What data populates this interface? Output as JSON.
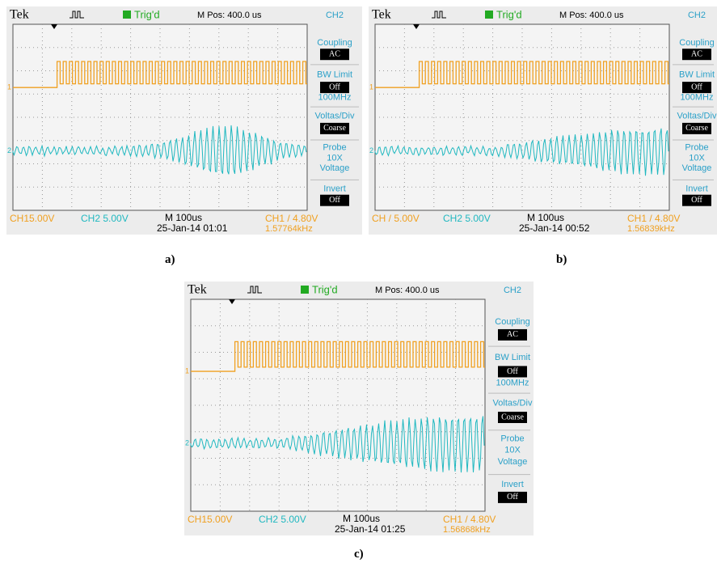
{
  "panels": [
    {
      "brand": "Tek",
      "trigger": "Trig'd",
      "m_pos": "M Pos: 400.0 us",
      "menu": {
        "channel": "CH2",
        "coupling": "Coupling",
        "coupling_value": "AC",
        "bw_limit": "BW Limit",
        "bw_value": "Off",
        "bw_freq": "100MHz",
        "volts_div": "Voltas/Div",
        "volts_value": "Coarse",
        "probe": "Probe",
        "probe_value": "10X",
        "probe_type": "Voltage",
        "invert": "Invert",
        "invert_value": "Off"
      },
      "ch1_marker": "1",
      "ch2_marker": "2",
      "ch1_scale": "CH15.00V",
      "ch2_scale": "CH2 5.00V",
      "timebase": "M 100us",
      "date": "25-Jan-14 01:01",
      "trigger_level": "CH1 / 4.80V",
      "frequency": "1.57764kHz",
      "caption": "a)"
    },
    {
      "brand": "Tek",
      "trigger": "Trig'd",
      "m_pos": "M Pos: 400.0 us",
      "menu": {
        "channel": "CH2",
        "coupling": "Coupling",
        "coupling_value": "AC",
        "bw_limit": "BW Limit",
        "bw_value": "Off",
        "bw_freq": "100MHz",
        "volts_div": "Voltas/Div",
        "volts_value": "Coarse",
        "probe": "Probe",
        "probe_value": "10X",
        "probe_type": "Voltage",
        "invert": "Invert",
        "invert_value": "Off"
      },
      "ch1_marker": "1",
      "ch2_marker": "2",
      "ch1_scale": "CH / 5.00V",
      "ch2_scale": "CH2 5.00V",
      "timebase": "M 100us",
      "date": "25-Jan-14 00:52",
      "trigger_level": "CH1 / 4.80V",
      "frequency": "1.56839kHz",
      "caption": "b)"
    },
    {
      "brand": "Tek",
      "trigger": "Trig'd",
      "m_pos": "M Pos: 400.0 us",
      "menu": {
        "channel": "CH2",
        "coupling": "Coupling",
        "coupling_value": "AC",
        "bw_limit": "BW Limit",
        "bw_value": "Off",
        "bw_freq": "100MHz",
        "volts_div": "Voltas/Div",
        "volts_value": "Coarse",
        "probe": "Probe",
        "probe_value": "10X",
        "probe_type": "Voltage",
        "invert": "Invert",
        "invert_value": "Off"
      },
      "ch1_marker": "1",
      "ch2_marker": "2",
      "ch1_scale": "CH15.00V",
      "ch2_scale": "CH2 5.00V",
      "timebase": "M 100us",
      "date": "25-Jan-14 01:25",
      "trigger_level": "CH1 / 4.80V",
      "frequency": "1.56868kHz",
      "caption": "c)"
    }
  ]
}
